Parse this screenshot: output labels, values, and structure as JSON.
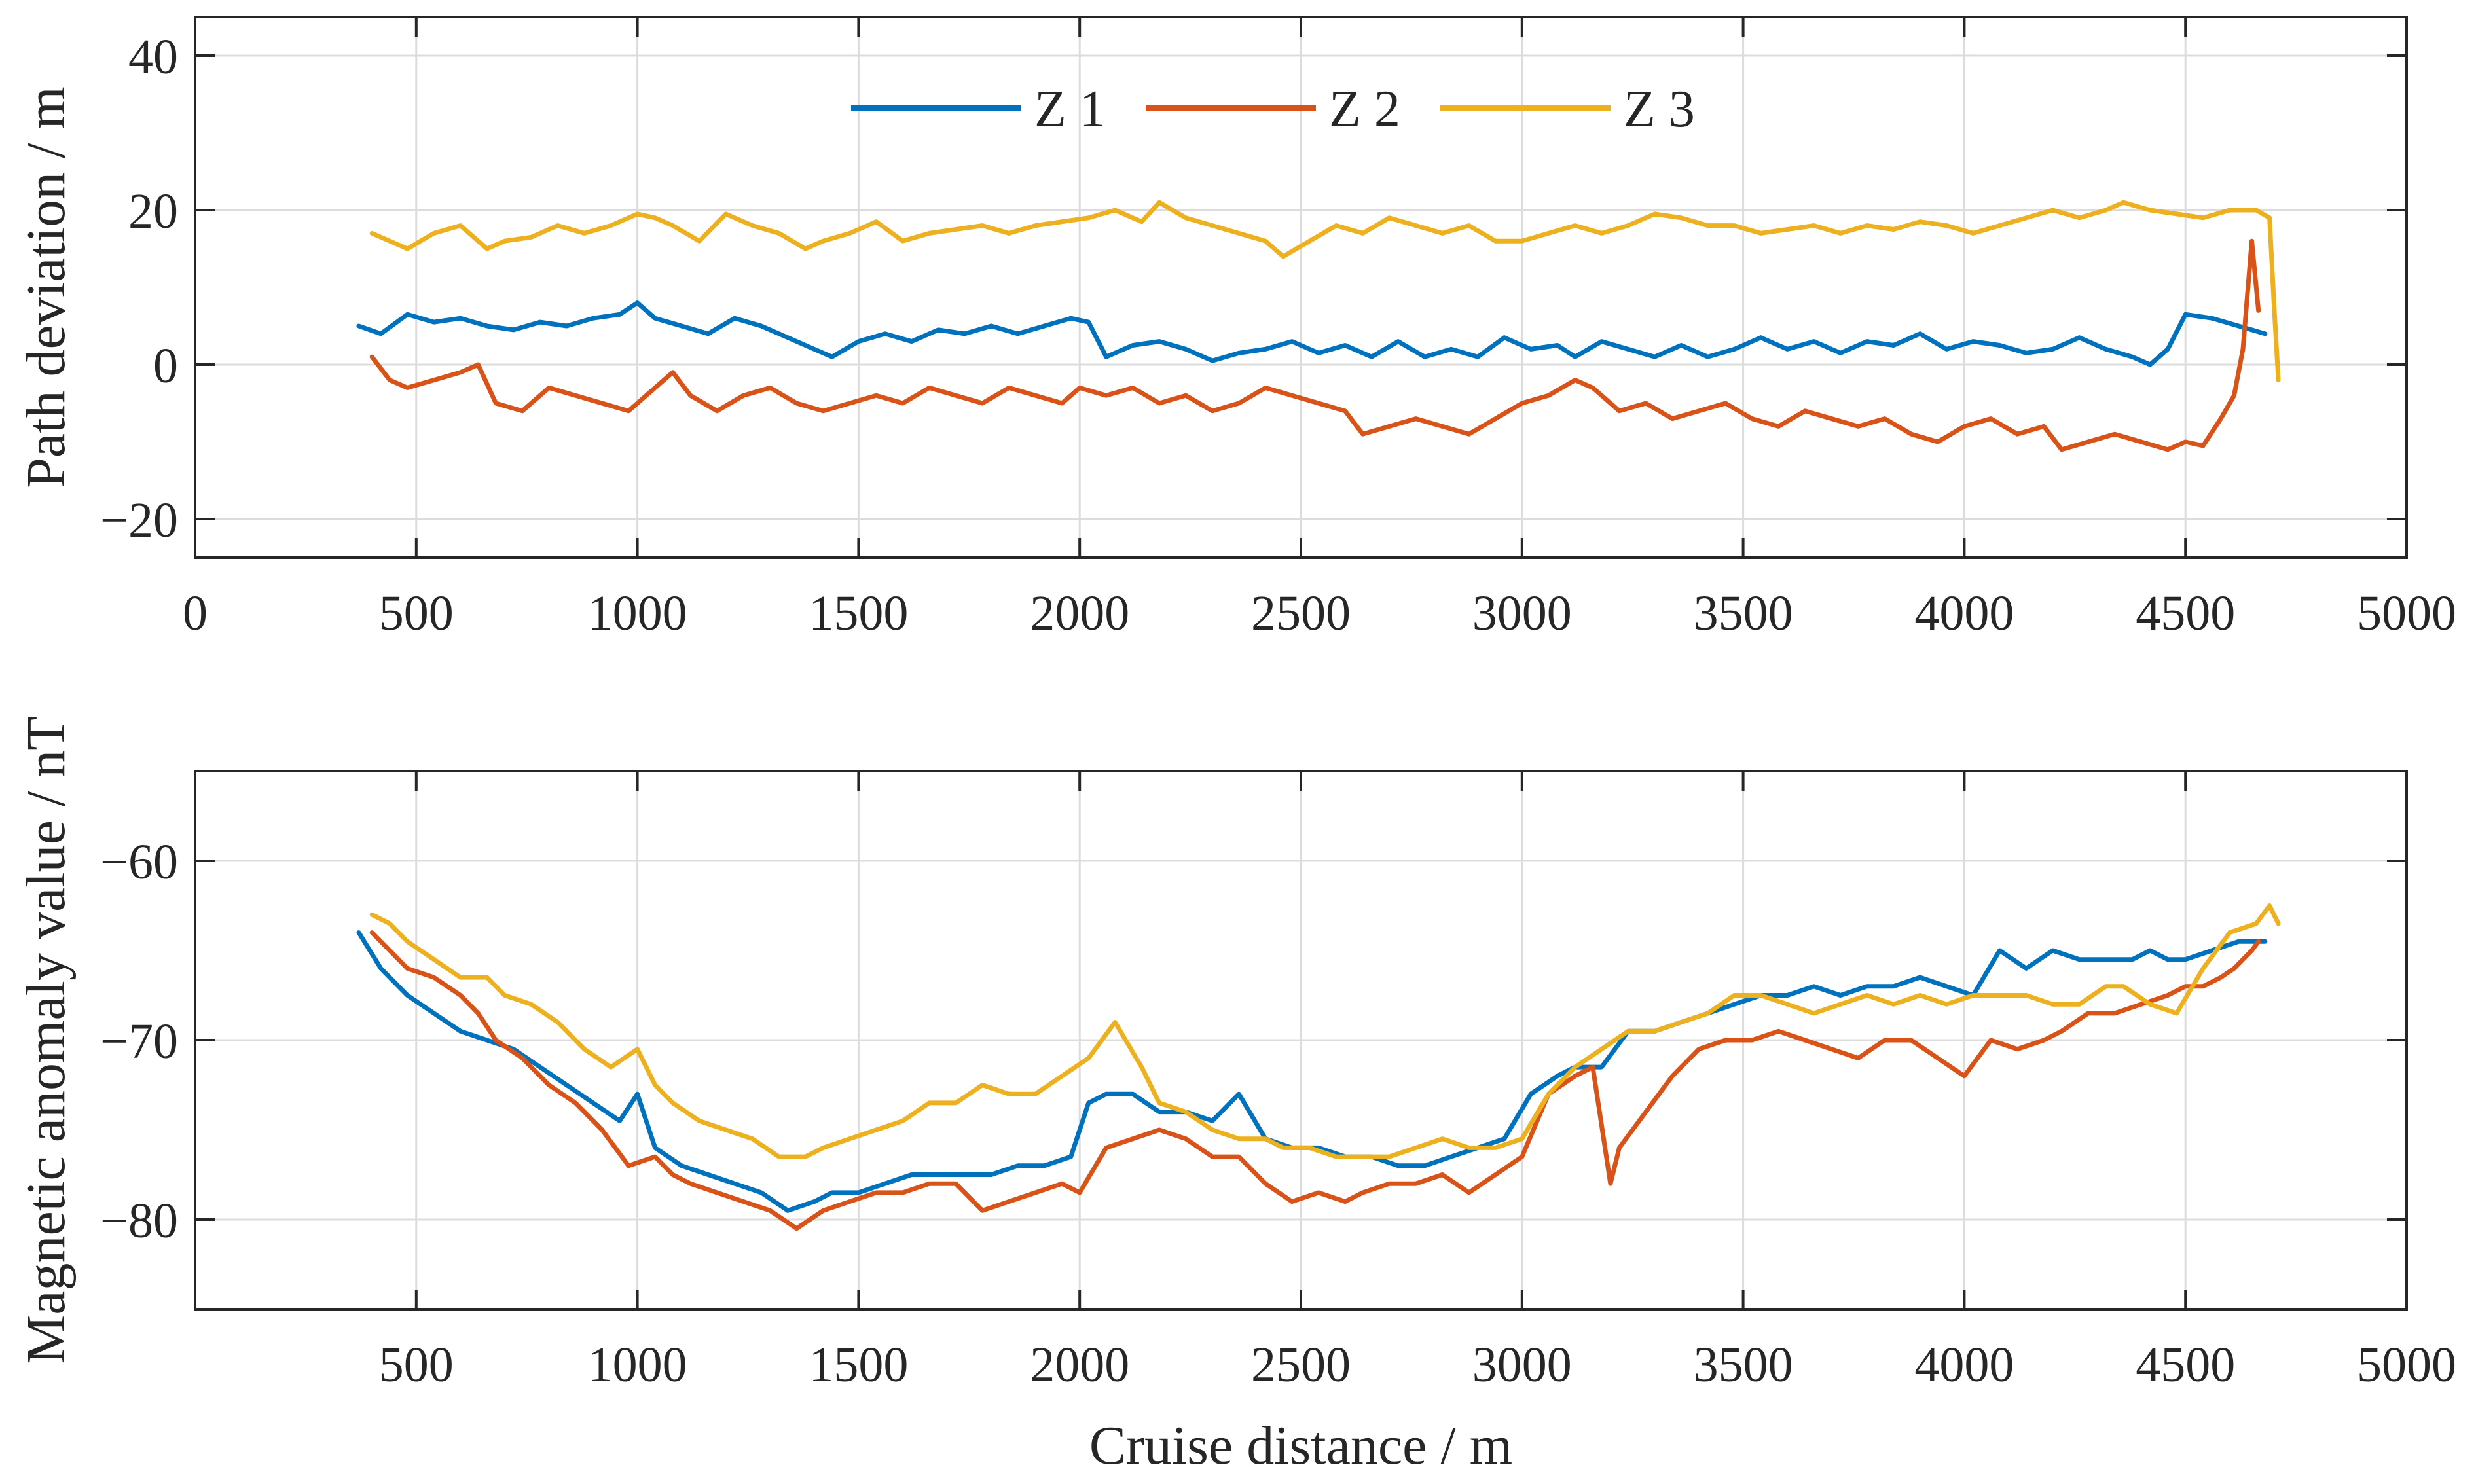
{
  "colors": {
    "Z1": "#0072BD",
    "Z2": "#D95319",
    "Z3": "#EDB120",
    "grid": "#dcdcdc",
    "axis": "#262626"
  },
  "chart_data": [
    {
      "type": "line",
      "ylabel": "Path deviation / m",
      "xlim": [
        0,
        5000
      ],
      "ylim": [
        -25,
        45
      ],
      "xticks": [
        0,
        500,
        1000,
        1500,
        2000,
        2500,
        3000,
        3500,
        4000,
        4500,
        5000
      ],
      "xtick_labels": [
        "0",
        "500",
        "1000",
        "1500",
        "2000",
        "2500",
        "3000",
        "3500",
        "4000",
        "4500",
        "5000"
      ],
      "yticks": [
        -20,
        0,
        20,
        40
      ],
      "ytick_labels": [
        "−20",
        "0",
        "20",
        "40"
      ],
      "grid": true,
      "legend": {
        "placement": "top-center",
        "orientation": "horizontal"
      },
      "series": [
        {
          "name": "Z 1",
          "x": [
            370,
            420,
            480,
            540,
            600,
            660,
            720,
            780,
            840,
            900,
            960,
            1000,
            1040,
            1100,
            1160,
            1220,
            1280,
            1340,
            1400,
            1440,
            1500,
            1560,
            1620,
            1680,
            1740,
            1800,
            1860,
            1920,
            1980,
            2020,
            2060,
            2120,
            2180,
            2240,
            2300,
            2360,
            2420,
            2480,
            2540,
            2600,
            2660,
            2720,
            2780,
            2840,
            2900,
            2960,
            3020,
            3080,
            3120,
            3180,
            3240,
            3300,
            3360,
            3420,
            3480,
            3540,
            3600,
            3660,
            3720,
            3780,
            3840,
            3900,
            3960,
            4020,
            4080,
            4140,
            4200,
            4260,
            4320,
            4380,
            4420,
            4460,
            4500,
            4560,
            4620,
            4680
          ],
          "y": [
            5,
            4,
            6.5,
            5.5,
            6,
            5,
            4.5,
            5.5,
            5,
            6,
            6.5,
            8,
            6,
            5,
            4,
            6,
            5,
            3.5,
            2,
            1,
            3,
            4,
            3,
            4.5,
            4,
            5,
            4,
            5,
            6,
            5.5,
            1,
            2.5,
            3,
            2,
            0.5,
            1.5,
            2,
            3,
            1.5,
            2.5,
            1,
            3,
            1,
            2,
            1,
            3.5,
            2,
            2.5,
            1,
            3,
            2,
            1,
            2.5,
            1,
            2,
            3.5,
            2,
            3,
            1.5,
            3,
            2.5,
            4,
            2,
            3,
            2.5,
            1.5,
            2,
            3.5,
            2,
            1,
            0,
            2,
            6.5,
            6,
            5,
            4
          ]
        },
        {
          "name": "Z 2",
          "x": [
            400,
            440,
            480,
            540,
            600,
            640,
            680,
            740,
            800,
            860,
            920,
            980,
            1040,
            1080,
            1120,
            1180,
            1240,
            1300,
            1360,
            1420,
            1480,
            1540,
            1600,
            1660,
            1720,
            1780,
            1840,
            1900,
            1960,
            2000,
            2060,
            2120,
            2180,
            2240,
            2300,
            2360,
            2420,
            2480,
            2540,
            2600,
            2640,
            2700,
            2760,
            2820,
            2880,
            2940,
            3000,
            3060,
            3120,
            3160,
            3220,
            3280,
            3340,
            3400,
            3460,
            3520,
            3580,
            3640,
            3700,
            3760,
            3820,
            3880,
            3940,
            4000,
            4060,
            4120,
            4180,
            4220,
            4280,
            4340,
            4400,
            4460,
            4500,
            4540,
            4580,
            4610,
            4630,
            4650,
            4665
          ],
          "y": [
            1,
            -2,
            -3,
            -2,
            -1,
            0,
            -5,
            -6,
            -3,
            -4,
            -5,
            -6,
            -3,
            -1,
            -4,
            -6,
            -4,
            -3,
            -5,
            -6,
            -5,
            -4,
            -5,
            -3,
            -4,
            -5,
            -3,
            -4,
            -5,
            -3,
            -4,
            -3,
            -5,
            -4,
            -6,
            -5,
            -3,
            -4,
            -5,
            -6,
            -9,
            -8,
            -7,
            -8,
            -9,
            -7,
            -5,
            -4,
            -2,
            -3,
            -6,
            -5,
            -7,
            -6,
            -5,
            -7,
            -8,
            -6,
            -7,
            -8,
            -7,
            -9,
            -10,
            -8,
            -7,
            -9,
            -8,
            -11,
            -10,
            -9,
            -10,
            -11,
            -10,
            -10.5,
            -7,
            -4,
            2,
            16,
            7
          ]
        },
        {
          "name": "Z 3",
          "x": [
            400,
            440,
            480,
            540,
            600,
            660,
            700,
            760,
            820,
            880,
            940,
            1000,
            1040,
            1080,
            1140,
            1200,
            1260,
            1320,
            1380,
            1420,
            1480,
            1540,
            1600,
            1660,
            1720,
            1780,
            1840,
            1900,
            1960,
            2020,
            2080,
            2140,
            2180,
            2240,
            2300,
            2360,
            2420,
            2460,
            2520,
            2580,
            2640,
            2700,
            2760,
            2820,
            2880,
            2940,
            3000,
            3060,
            3120,
            3180,
            3240,
            3300,
            3360,
            3420,
            3480,
            3540,
            3600,
            3660,
            3720,
            3780,
            3840,
            3900,
            3960,
            4020,
            4080,
            4140,
            4200,
            4260,
            4320,
            4360,
            4420,
            4480,
            4540,
            4600,
            4660,
            4690,
            4700,
            4710
          ],
          "y": [
            17,
            16,
            15,
            17,
            18,
            15,
            16,
            16.5,
            18,
            17,
            18,
            19.5,
            19,
            18,
            16,
            19.5,
            18,
            17,
            15,
            16,
            17,
            18.5,
            16,
            17,
            17.5,
            18,
            17,
            18,
            18.5,
            19,
            20,
            18.5,
            21,
            19,
            18,
            17,
            16,
            14,
            16,
            18,
            17,
            19,
            18,
            17,
            18,
            16,
            16,
            17,
            18,
            17,
            18,
            19.5,
            19,
            18,
            18,
            17,
            17.5,
            18,
            17,
            18,
            17.5,
            18.5,
            18,
            17,
            18,
            19,
            20,
            19,
            20,
            21,
            20,
            19.5,
            19,
            20,
            20,
            19,
            8,
            -2
          ]
        }
      ]
    },
    {
      "type": "line",
      "xlabel": "Cruise distance / m",
      "ylabel": "Magnetic anomaly value / nT",
      "xlim": [
        0,
        5000
      ],
      "ylim": [
        -85,
        -55
      ],
      "xticks": [
        500,
        1000,
        1500,
        2000,
        2500,
        3000,
        3500,
        4000,
        4500,
        5000
      ],
      "xtick_labels": [
        "500",
        "1000",
        "1500",
        "2000",
        "2500",
        "3000",
        "3500",
        "4000",
        "4500",
        "5000"
      ],
      "yticks": [
        -80,
        -70,
        -60
      ],
      "ytick_labels": [
        "−80",
        "−70",
        "−60"
      ],
      "grid": true,
      "series": [
        {
          "name": "Z 1",
          "x": [
            370,
            420,
            480,
            540,
            600,
            660,
            720,
            780,
            840,
            900,
            960,
            1000,
            1040,
            1100,
            1160,
            1220,
            1280,
            1340,
            1400,
            1440,
            1500,
            1560,
            1620,
            1680,
            1740,
            1800,
            1860,
            1920,
            1980,
            2020,
            2060,
            2120,
            2180,
            2240,
            2300,
            2360,
            2420,
            2480,
            2540,
            2600,
            2660,
            2720,
            2780,
            2840,
            2900,
            2960,
            3020,
            3080,
            3120,
            3180,
            3240,
            3300,
            3360,
            3420,
            3480,
            3540,
            3600,
            3660,
            3720,
            3780,
            3840,
            3900,
            3960,
            4020,
            4080,
            4140,
            4200,
            4260,
            4320,
            4380,
            4420,
            4460,
            4500,
            4560,
            4620,
            4680
          ],
          "y": [
            -64,
            -66,
            -67.5,
            -68.5,
            -69.5,
            -70,
            -70.5,
            -71.5,
            -72.5,
            -73.5,
            -74.5,
            -73,
            -76,
            -77,
            -77.5,
            -78,
            -78.5,
            -79.5,
            -79,
            -78.5,
            -78.5,
            -78,
            -77.5,
            -77.5,
            -77.5,
            -77.5,
            -77,
            -77,
            -76.5,
            -73.5,
            -73,
            -73,
            -74,
            -74,
            -74.5,
            -73,
            -75.5,
            -76,
            -76,
            -76.5,
            -76.5,
            -77,
            -77,
            -76.5,
            -76,
            -75.5,
            -73,
            -72,
            -71.5,
            -71.5,
            -69.5,
            -69.5,
            -69,
            -68.5,
            -68,
            -67.5,
            -67.5,
            -67,
            -67.5,
            -67,
            -67,
            -66.5,
            -67,
            -67.5,
            -65,
            -66,
            -65,
            -65.5,
            -65.5,
            -65.5,
            -65,
            -65.5,
            -65.5,
            -65,
            -64.5,
            -64.5
          ]
        },
        {
          "name": "Z 2",
          "x": [
            400,
            440,
            480,
            540,
            600,
            640,
            680,
            740,
            800,
            860,
            920,
            980,
            1040,
            1080,
            1120,
            1180,
            1240,
            1300,
            1360,
            1420,
            1480,
            1540,
            1600,
            1660,
            1720,
            1780,
            1840,
            1900,
            1960,
            2000,
            2060,
            2120,
            2180,
            2240,
            2300,
            2360,
            2420,
            2480,
            2540,
            2600,
            2640,
            2700,
            2760,
            2820,
            2880,
            2940,
            3000,
            3060,
            3120,
            3160,
            3200,
            3220,
            3280,
            3340,
            3400,
            3460,
            3520,
            3580,
            3640,
            3700,
            3760,
            3820,
            3880,
            3940,
            4000,
            4060,
            4120,
            4180,
            4220,
            4280,
            4340,
            4400,
            4460,
            4500,
            4540,
            4580,
            4610,
            4630,
            4650,
            4665
          ],
          "y": [
            -64,
            -65,
            -66,
            -66.5,
            -67.5,
            -68.5,
            -70,
            -71,
            -72.5,
            -73.5,
            -75,
            -77,
            -76.5,
            -77.5,
            -78,
            -78.5,
            -79,
            -79.5,
            -80.5,
            -79.5,
            -79,
            -78.5,
            -78.5,
            -78,
            -78,
            -79.5,
            -79,
            -78.5,
            -78,
            -78.5,
            -76,
            -75.5,
            -75,
            -75.5,
            -76.5,
            -76.5,
            -78,
            -79,
            -78.5,
            -79,
            -78.5,
            -78,
            -78,
            -77.5,
            -78.5,
            -77.5,
            -76.5,
            -73,
            -72,
            -71.5,
            -78,
            -76,
            -74,
            -72,
            -70.5,
            -70,
            -70,
            -69.5,
            -70,
            -70.5,
            -71,
            -70,
            -70,
            -71,
            -72,
            -70,
            -70.5,
            -70,
            -69.5,
            -68.5,
            -68.5,
            -68,
            -67.5,
            -67,
            -67,
            -66.5,
            -66,
            -65.5,
            -65,
            -64.5
          ]
        },
        {
          "name": "Z 3",
          "x": [
            400,
            440,
            480,
            540,
            600,
            660,
            700,
            760,
            820,
            880,
            940,
            1000,
            1040,
            1080,
            1140,
            1200,
            1260,
            1320,
            1380,
            1420,
            1480,
            1540,
            1600,
            1660,
            1720,
            1780,
            1840,
            1900,
            1960,
            2020,
            2080,
            2140,
            2180,
            2240,
            2300,
            2360,
            2420,
            2460,
            2520,
            2580,
            2640,
            2700,
            2760,
            2820,
            2880,
            2940,
            3000,
            3060,
            3120,
            3180,
            3240,
            3300,
            3360,
            3420,
            3480,
            3540,
            3600,
            3660,
            3720,
            3780,
            3840,
            3900,
            3960,
            4020,
            4080,
            4140,
            4200,
            4260,
            4320,
            4360,
            4420,
            4480,
            4540,
            4600,
            4660,
            4690,
            4700,
            4710
          ],
          "y": [
            -63,
            -63.5,
            -64.5,
            -65.5,
            -66.5,
            -66.5,
            -67.5,
            -68,
            -69,
            -70.5,
            -71.5,
            -70.5,
            -72.5,
            -73.5,
            -74.5,
            -75,
            -75.5,
            -76.5,
            -76.5,
            -76,
            -75.5,
            -75,
            -74.5,
            -73.5,
            -73.5,
            -72.5,
            -73,
            -73,
            -72,
            -71,
            -69,
            -71.5,
            -73.5,
            -74,
            -75,
            -75.5,
            -75.5,
            -76,
            -76,
            -76.5,
            -76.5,
            -76.5,
            -76,
            -75.5,
            -76,
            -76,
            -75.5,
            -73,
            -71.5,
            -70.5,
            -69.5,
            -69.5,
            -69,
            -68.5,
            -67.5,
            -67.5,
            -68,
            -68.5,
            -68,
            -67.5,
            -68,
            -67.5,
            -68,
            -67.5,
            -67.5,
            -67.5,
            -68,
            -68,
            -67,
            -67,
            -68,
            -68.5,
            -66,
            -64,
            -63.5,
            -62.5,
            -63,
            -63.5
          ]
        }
      ]
    }
  ]
}
